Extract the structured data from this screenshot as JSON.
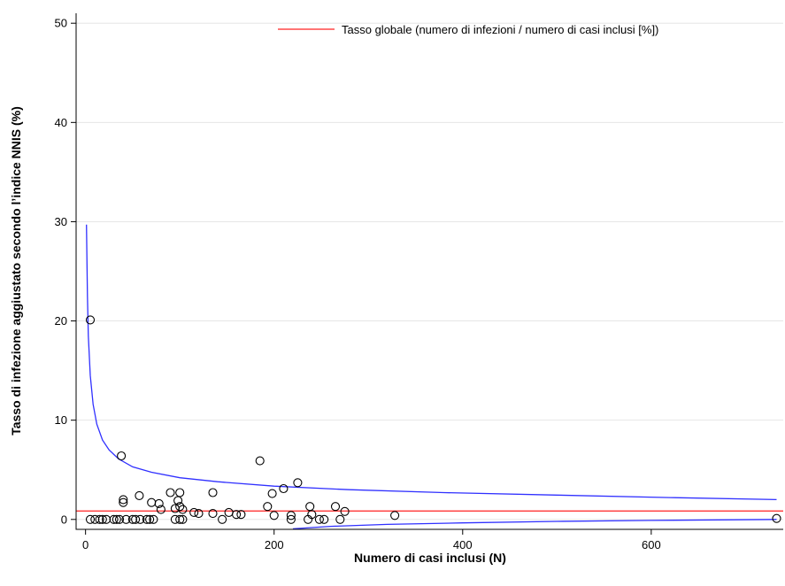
{
  "chart_data": {
    "type": "scatter",
    "title": "",
    "xlabel": "Numero di casi inclusi (N)",
    "ylabel": "Tasso di infezione aggiustato secondo l’indice NNIS (%)",
    "xlim": [
      -10,
      740
    ],
    "ylim": [
      -1,
      51
    ],
    "xticks": [
      0,
      200,
      400,
      600
    ],
    "yticks": [
      0,
      10,
      20,
      30,
      40,
      50
    ],
    "grid": "horizontal",
    "legend_position": "top-right",
    "legend": [
      {
        "label": "Tasso globale (numero di infezioni / numero di casi inclusi [%])",
        "color": "#ff2020"
      }
    ],
    "overall_rate": 0.85,
    "overall_rate_color": "#ff2020",
    "limit_color": "#3030ff",
    "limit_x_range": [
      1,
      733
    ],
    "upper_limit": [
      [
        1,
        29.7
      ],
      [
        2,
        22.5
      ],
      [
        3,
        18.5
      ],
      [
        5,
        14.5
      ],
      [
        8,
        11.6
      ],
      [
        12,
        9.6
      ],
      [
        18,
        8.0
      ],
      [
        25,
        7.0
      ],
      [
        35,
        6.1
      ],
      [
        50,
        5.3
      ],
      [
        70,
        4.75
      ],
      [
        100,
        4.2
      ],
      [
        140,
        3.8
      ],
      [
        200,
        3.35
      ],
      [
        280,
        3.0
      ],
      [
        380,
        2.7
      ],
      [
        500,
        2.45
      ],
      [
        620,
        2.2
      ],
      [
        733,
        2.0
      ]
    ],
    "lower_limit": [
      [
        220,
        -0.95
      ],
      [
        260,
        -0.7
      ],
      [
        320,
        -0.5
      ],
      [
        400,
        -0.35
      ],
      [
        500,
        -0.2
      ],
      [
        600,
        -0.1
      ],
      [
        733,
        0.0
      ]
    ],
    "points": [
      [
        5,
        20.1
      ],
      [
        38,
        6.4
      ],
      [
        185,
        5.9
      ],
      [
        225,
        3.7
      ],
      [
        210,
        3.1
      ],
      [
        135,
        2.7
      ],
      [
        90,
        2.7
      ],
      [
        100,
        2.7
      ],
      [
        198,
        2.6
      ],
      [
        57,
        2.4
      ],
      [
        40,
        2.0
      ],
      [
        40,
        1.7
      ],
      [
        98,
        1.9
      ],
      [
        70,
        1.7
      ],
      [
        78,
        1.6
      ],
      [
        100,
        1.3
      ],
      [
        80,
        1.0
      ],
      [
        95,
        1.1
      ],
      [
        103,
        1.0
      ],
      [
        193,
        1.3
      ],
      [
        238,
        1.3
      ],
      [
        265,
        1.3
      ],
      [
        115,
        0.7
      ],
      [
        120,
        0.6
      ],
      [
        135,
        0.6
      ],
      [
        152,
        0.7
      ],
      [
        160,
        0.5
      ],
      [
        165,
        0.5
      ],
      [
        200,
        0.4
      ],
      [
        218,
        0.4
      ],
      [
        240,
        0.5
      ],
      [
        275,
        0.8
      ],
      [
        328,
        0.4
      ],
      [
        5,
        0.0
      ],
      [
        10,
        0.0
      ],
      [
        15,
        0.0
      ],
      [
        18,
        0.0
      ],
      [
        22,
        0.0
      ],
      [
        30,
        0.0
      ],
      [
        33,
        0.0
      ],
      [
        36,
        0.0
      ],
      [
        43,
        0.0
      ],
      [
        50,
        0.0
      ],
      [
        53,
        0.0
      ],
      [
        58,
        0.0
      ],
      [
        65,
        0.0
      ],
      [
        68,
        0.0
      ],
      [
        72,
        0.0
      ],
      [
        95,
        0.0
      ],
      [
        100,
        0.0
      ],
      [
        103,
        0.0
      ],
      [
        145,
        0.0
      ],
      [
        218,
        0.0
      ],
      [
        236,
        0.0
      ],
      [
        248,
        0.0
      ],
      [
        253,
        0.0
      ],
      [
        270,
        0.0
      ],
      [
        733,
        0.1
      ]
    ]
  }
}
